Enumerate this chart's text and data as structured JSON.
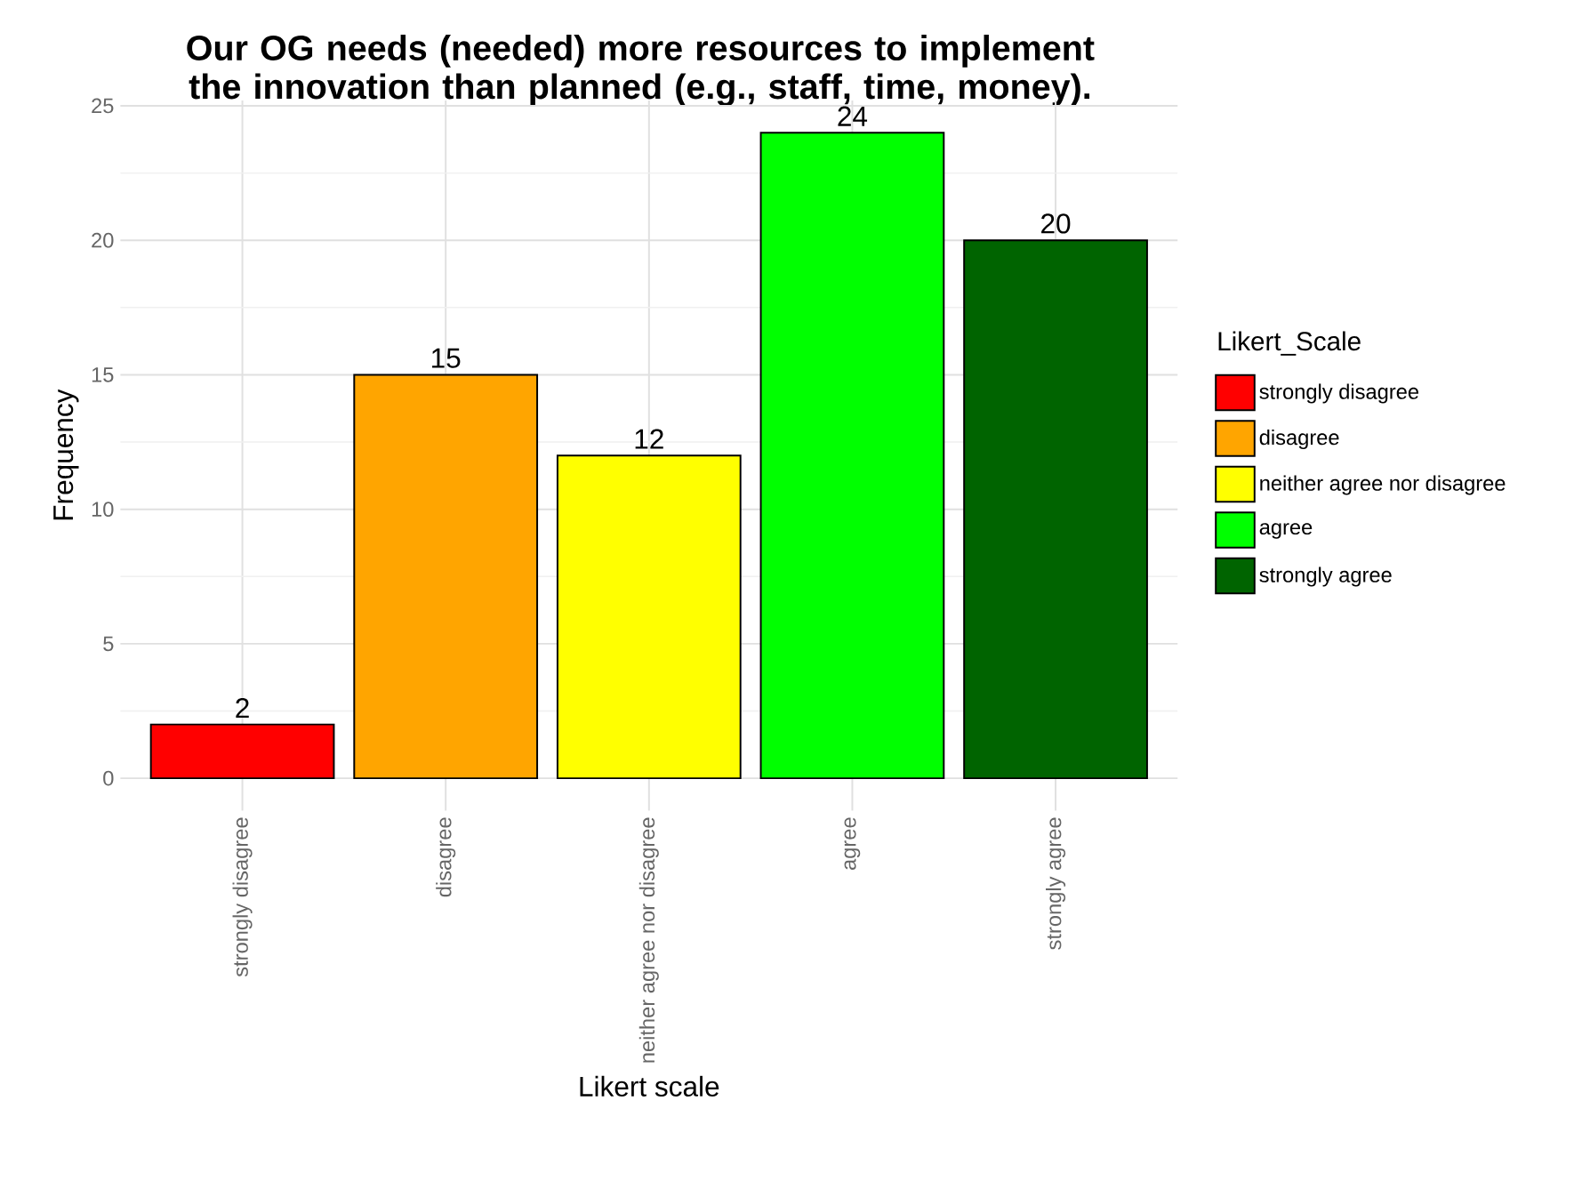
{
  "chart_data": {
    "type": "bar",
    "title": "Our OG needs (needed) more resources to implement the innovation than planned (e.g., staff, time, money).",
    "xlabel": "Likert scale",
    "ylabel": "Frequency",
    "legend_title": "Likert_Scale",
    "categories": [
      "strongly disagree",
      "disagree",
      "neither agree nor disagree",
      "agree",
      "strongly agree"
    ],
    "series": [
      {
        "name": "strongly disagree",
        "color": "#ff0000",
        "values": [
          2,
          null,
          null,
          null,
          null
        ]
      },
      {
        "name": "disagree",
        "color": "#ffa500",
        "values": [
          null,
          15,
          null,
          null,
          null
        ]
      },
      {
        "name": "neither agree nor disagree",
        "color": "#ffff00",
        "values": [
          null,
          null,
          12,
          null,
          null
        ]
      },
      {
        "name": "agree",
        "color": "#00ff00",
        "values": [
          null,
          null,
          null,
          24,
          null
        ]
      },
      {
        "name": "strongly agree",
        "color": "#006400",
        "values": [
          null,
          null,
          null,
          null,
          20
        ]
      }
    ],
    "ylim": [
      -1.2,
      25.2
    ],
    "yticks": [
      0,
      5,
      10,
      15,
      20,
      25
    ],
    "grid": true,
    "legend": "right",
    "data_labels": true
  }
}
